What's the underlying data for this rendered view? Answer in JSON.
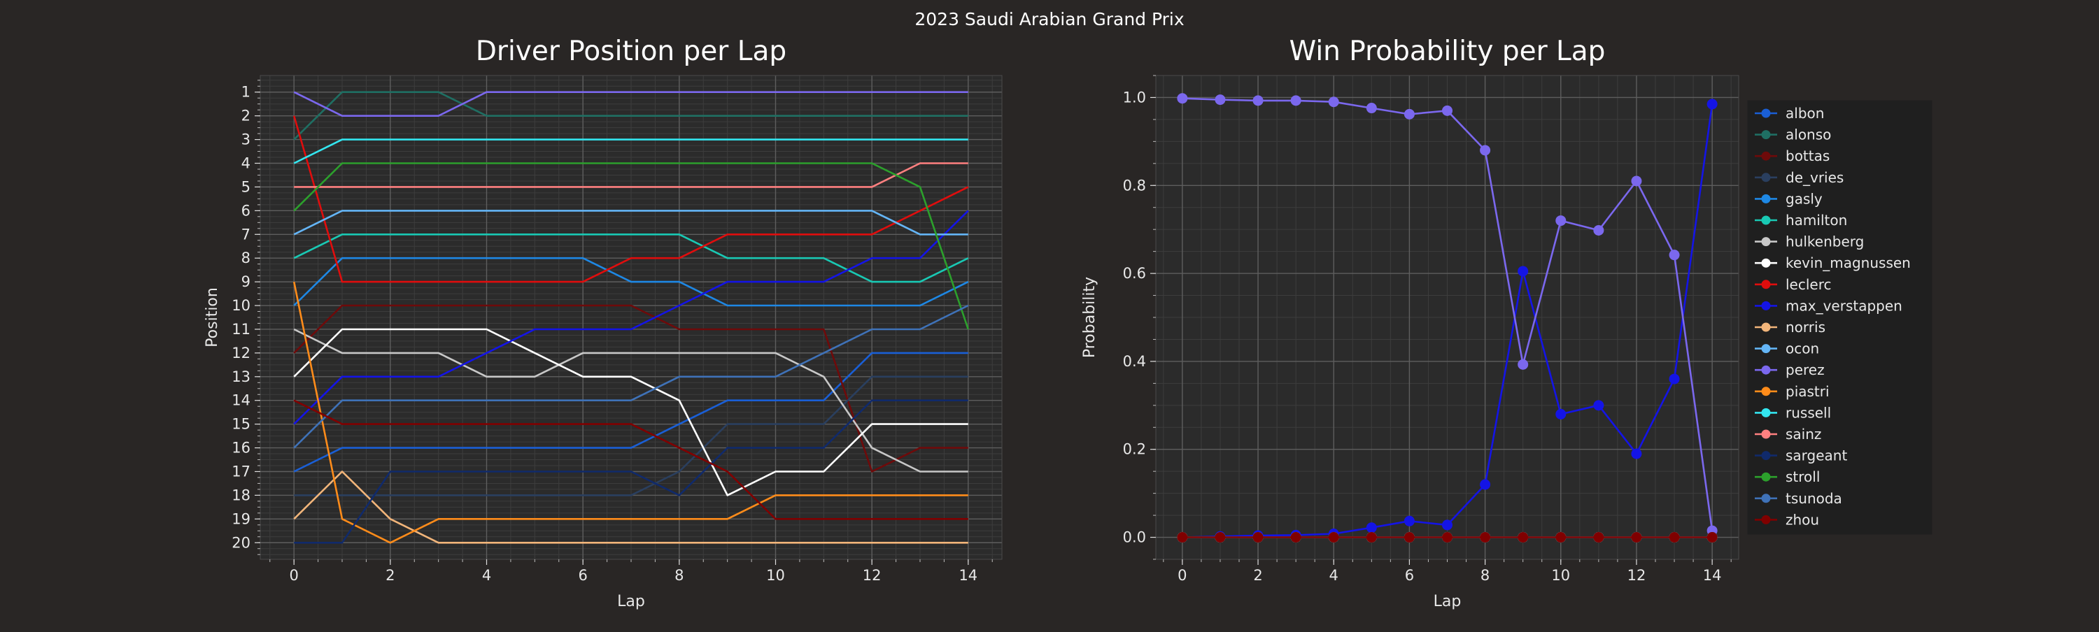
{
  "suptitle": "2023 Saudi Arabian Grand Prix",
  "chart_data": [
    {
      "type": "line",
      "title": "Driver Position per Lap",
      "xlabel": "Lap",
      "ylabel": "Position",
      "xlim": [
        -0.7,
        14.7
      ],
      "ylim": [
        20.7,
        0.3
      ],
      "y_inverted": true,
      "xticks": [
        0,
        2,
        4,
        6,
        8,
        10,
        12,
        14
      ],
      "yticks": [
        1,
        2,
        3,
        4,
        5,
        6,
        7,
        8,
        9,
        10,
        11,
        12,
        13,
        14,
        15,
        16,
        17,
        18,
        19,
        20
      ],
      "grid": true,
      "x": [
        0,
        1,
        2,
        3,
        4,
        5,
        6,
        7,
        8,
        9,
        10,
        11,
        12,
        13,
        14
      ],
      "series": [
        {
          "name": "albon",
          "color": "#1a5fd6",
          "values": [
            17,
            16,
            16,
            16,
            16,
            16,
            16,
            16,
            15,
            14,
            14,
            14,
            12,
            12,
            12
          ]
        },
        {
          "name": "alonso",
          "color": "#1f6f63",
          "values": [
            3,
            1,
            1,
            1,
            2,
            2,
            2,
            2,
            2,
            2,
            2,
            2,
            2,
            2,
            2
          ]
        },
        {
          "name": "bottas",
          "color": "#6e0a0a",
          "values": [
            12,
            10,
            10,
            10,
            10,
            10,
            10,
            10,
            11,
            11,
            11,
            11,
            17,
            16,
            16
          ]
        },
        {
          "name": "de_vries",
          "color": "#2a3f5f",
          "values": [
            18,
            18,
            18,
            18,
            18,
            18,
            18,
            18,
            17,
            15,
            15,
            15,
            13,
            13,
            13
          ]
        },
        {
          "name": "gasly",
          "color": "#1e88e5",
          "values": [
            10,
            8,
            8,
            8,
            8,
            8,
            8,
            9,
            9,
            10,
            10,
            10,
            10,
            10,
            9
          ]
        },
        {
          "name": "hamilton",
          "color": "#19c9b4",
          "values": [
            8,
            7,
            7,
            7,
            7,
            7,
            7,
            7,
            7,
            8,
            8,
            8,
            9,
            9,
            8
          ]
        },
        {
          "name": "hulkenberg",
          "color": "#c8c8c8",
          "values": [
            11,
            12,
            12,
            12,
            13,
            13,
            12,
            12,
            12,
            12,
            12,
            13,
            16,
            17,
            17
          ]
        },
        {
          "name": "kevin_magnussen",
          "color": "#ffffff",
          "values": [
            13,
            11,
            11,
            11,
            11,
            12,
            13,
            13,
            14,
            18,
            17,
            17,
            15,
            15,
            15
          ]
        },
        {
          "name": "leclerc",
          "color": "#e00d0d",
          "values": [
            2,
            9,
            9,
            9,
            9,
            9,
            9,
            8,
            8,
            7,
            7,
            7,
            7,
            6,
            5
          ]
        },
        {
          "name": "max_verstappen",
          "color": "#1414e6",
          "values": [
            15,
            13,
            13,
            13,
            12,
            11,
            11,
            11,
            10,
            9,
            9,
            9,
            8,
            8,
            6
          ]
        },
        {
          "name": "norris",
          "color": "#f2b57a",
          "values": [
            19,
            17,
            19,
            20,
            20,
            20,
            20,
            20,
            20,
            20,
            20,
            20,
            20,
            20,
            20
          ]
        },
        {
          "name": "ocon",
          "color": "#64b5f6",
          "values": [
            7,
            6,
            6,
            6,
            6,
            6,
            6,
            6,
            6,
            6,
            6,
            6,
            6,
            7,
            7
          ]
        },
        {
          "name": "perez",
          "color": "#7b68ee",
          "values": [
            1,
            2,
            2,
            2,
            1,
            1,
            1,
            1,
            1,
            1,
            1,
            1,
            1,
            1,
            1
          ]
        },
        {
          "name": "piastri",
          "color": "#ff8c1a",
          "values": [
            9,
            19,
            20,
            19,
            19,
            19,
            19,
            19,
            19,
            19,
            18,
            18,
            18,
            18,
            18
          ]
        },
        {
          "name": "russell",
          "color": "#33e6f0",
          "values": [
            4,
            3,
            3,
            3,
            3,
            3,
            3,
            3,
            3,
            3,
            3,
            3,
            3,
            3,
            3
          ]
        },
        {
          "name": "sainz",
          "color": "#ff8080",
          "values": [
            5,
            5,
            5,
            5,
            5,
            5,
            5,
            5,
            5,
            5,
            5,
            5,
            5,
            4,
            4
          ]
        },
        {
          "name": "sargeant",
          "color": "#102a6b",
          "values": [
            20,
            20,
            17,
            17,
            17,
            17,
            17,
            17,
            18,
            16,
            16,
            16,
            14,
            14,
            14
          ]
        },
        {
          "name": "stroll",
          "color": "#2ca02c",
          "values": [
            6,
            4,
            4,
            4,
            4,
            4,
            4,
            4,
            4,
            4,
            4,
            4,
            4,
            5,
            11
          ]
        },
        {
          "name": "tsunoda",
          "color": "#3f72b8",
          "values": [
            16,
            14,
            14,
            14,
            14,
            14,
            14,
            14,
            13,
            13,
            13,
            12,
            11,
            11,
            10
          ]
        },
        {
          "name": "zhou",
          "color": "#800000",
          "values": [
            14,
            15,
            15,
            15,
            15,
            15,
            15,
            15,
            16,
            17,
            19,
            19,
            19,
            19,
            19
          ]
        }
      ]
    },
    {
      "type": "line",
      "title": "Win Probability per Lap",
      "xlabel": "Lap",
      "ylabel": "Probability",
      "xlim": [
        -0.7,
        14.7
      ],
      "ylim": [
        -0.05,
        1.05
      ],
      "xticks": [
        0,
        2,
        4,
        6,
        8,
        10,
        12,
        14
      ],
      "yticks": [
        0.0,
        0.2,
        0.4,
        0.6,
        0.8,
        1.0
      ],
      "ytick_labels": [
        "0.0",
        "0.2",
        "0.4",
        "0.6",
        "0.8",
        "1.0"
      ],
      "grid": true,
      "markers": true,
      "legend_position": "right",
      "x": [
        0,
        1,
        2,
        3,
        4,
        5,
        6,
        7,
        8,
        9,
        10,
        11,
        12,
        13,
        14
      ],
      "series": [
        {
          "name": "albon",
          "color": "#1a5fd6",
          "values": [
            0,
            0,
            0,
            0,
            0,
            0,
            0,
            0,
            0,
            0,
            0,
            0,
            0,
            0,
            0
          ]
        },
        {
          "name": "alonso",
          "color": "#1f6f63",
          "values": [
            0,
            0,
            0,
            0,
            0,
            0,
            0,
            0,
            0,
            0,
            0,
            0,
            0,
            0,
            0
          ]
        },
        {
          "name": "bottas",
          "color": "#6e0a0a",
          "values": [
            0,
            0,
            0,
            0,
            0,
            0,
            0,
            0,
            0,
            0,
            0,
            0,
            0,
            0,
            0
          ]
        },
        {
          "name": "de_vries",
          "color": "#2a3f5f",
          "values": [
            0,
            0,
            0,
            0,
            0,
            0,
            0,
            0,
            0,
            0,
            0,
            0,
            0,
            0,
            0
          ]
        },
        {
          "name": "gasly",
          "color": "#1e88e5",
          "values": [
            0,
            0,
            0,
            0,
            0,
            0,
            0,
            0,
            0,
            0,
            0,
            0,
            0,
            0,
            0
          ]
        },
        {
          "name": "hamilton",
          "color": "#19c9b4",
          "values": [
            0,
            0,
            0,
            0,
            0,
            0,
            0,
            0,
            0,
            0,
            0,
            0,
            0,
            0,
            0
          ]
        },
        {
          "name": "hulkenberg",
          "color": "#c8c8c8",
          "values": [
            0,
            0,
            0,
            0,
            0,
            0,
            0,
            0,
            0,
            0,
            0,
            0,
            0,
            0,
            0
          ]
        },
        {
          "name": "kevin_magnussen",
          "color": "#ffffff",
          "values": [
            0,
            0,
            0,
            0,
            0,
            0,
            0,
            0,
            0,
            0,
            0,
            0,
            0,
            0,
            0
          ]
        },
        {
          "name": "leclerc",
          "color": "#e00d0d",
          "values": [
            0,
            0,
            0,
            0,
            0,
            0,
            0,
            0,
            0,
            0,
            0,
            0,
            0,
            0,
            0
          ]
        },
        {
          "name": "max_verstappen",
          "color": "#1414e6",
          "values": [
            0,
            0.002,
            0.004,
            0.005,
            0.008,
            0.022,
            0.037,
            0.028,
            0.12,
            0.605,
            0.28,
            0.3,
            0.19,
            0.36,
            0.985
          ]
        },
        {
          "name": "norris",
          "color": "#f2b57a",
          "values": [
            0,
            0,
            0,
            0,
            0,
            0,
            0,
            0,
            0,
            0,
            0,
            0,
            0,
            0,
            0
          ]
        },
        {
          "name": "ocon",
          "color": "#64b5f6",
          "values": [
            0,
            0,
            0,
            0,
            0,
            0,
            0,
            0,
            0,
            0,
            0,
            0,
            0,
            0,
            0
          ]
        },
        {
          "name": "perez",
          "color": "#7b68ee",
          "values": [
            0.998,
            0.995,
            0.993,
            0.993,
            0.99,
            0.976,
            0.962,
            0.97,
            0.88,
            0.393,
            0.72,
            0.698,
            0.81,
            0.642,
            0.015
          ]
        },
        {
          "name": "piastri",
          "color": "#ff8c1a",
          "values": [
            0,
            0,
            0,
            0,
            0,
            0,
            0,
            0,
            0,
            0,
            0,
            0,
            0,
            0,
            0
          ]
        },
        {
          "name": "russell",
          "color": "#33e6f0",
          "values": [
            0,
            0,
            0,
            0,
            0,
            0,
            0,
            0,
            0,
            0,
            0,
            0,
            0,
            0,
            0
          ]
        },
        {
          "name": "sainz",
          "color": "#ff8080",
          "values": [
            0,
            0,
            0,
            0,
            0,
            0,
            0,
            0,
            0,
            0,
            0,
            0,
            0,
            0,
            0
          ]
        },
        {
          "name": "sargeant",
          "color": "#102a6b",
          "values": [
            0,
            0,
            0,
            0,
            0,
            0,
            0,
            0,
            0,
            0,
            0,
            0,
            0,
            0,
            0
          ]
        },
        {
          "name": "stroll",
          "color": "#2ca02c",
          "values": [
            0,
            0,
            0,
            0,
            0,
            0,
            0,
            0,
            0,
            0,
            0,
            0,
            0,
            0,
            0
          ]
        },
        {
          "name": "tsunoda",
          "color": "#3f72b8",
          "values": [
            0,
            0,
            0,
            0,
            0,
            0,
            0,
            0,
            0,
            0,
            0,
            0,
            0,
            0,
            0
          ]
        },
        {
          "name": "zhou",
          "color": "#800000",
          "values": [
            0,
            0,
            0,
            0,
            0,
            0,
            0,
            0,
            0,
            0,
            0,
            0,
            0,
            0,
            0
          ]
        }
      ]
    }
  ]
}
